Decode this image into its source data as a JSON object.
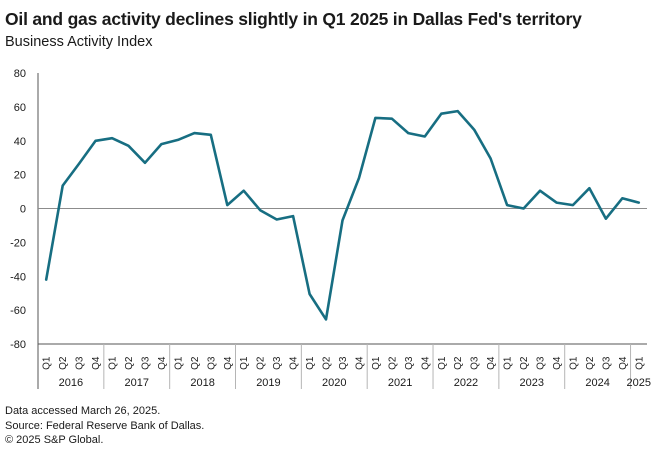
{
  "header": {
    "title": "Oil and gas activity declines slightly in Q1 2025 in Dallas Fed's territory",
    "subtitle": "Business Activity Index"
  },
  "footer": {
    "lines": [
      "Data accessed March 26, 2025.",
      "Source: Federal Reserve Bank of Dallas.",
      "© 2025 S&P Global."
    ]
  },
  "colors": {
    "line": "#176e82",
    "zero_line": "#8c8c8c",
    "axis": "#555555",
    "separator": "#b5b5b5"
  },
  "chart_data": {
    "type": "line",
    "ylim": [
      -80,
      80
    ],
    "yticks": [
      80,
      60,
      40,
      20,
      0,
      -20,
      -40,
      -60,
      -80
    ],
    "x": [
      "Q1 2016",
      "Q2 2016",
      "Q3 2016",
      "Q4 2016",
      "Q1 2017",
      "Q2 2017",
      "Q3 2017",
      "Q4 2017",
      "Q1 2018",
      "Q2 2018",
      "Q3 2018",
      "Q4 2018",
      "Q1 2019",
      "Q2 2019",
      "Q3 2019",
      "Q4 2019",
      "Q1 2020",
      "Q2 2020",
      "Q3 2020",
      "Q4 2020",
      "Q1 2021",
      "Q2 2021",
      "Q3 2021",
      "Q4 2021",
      "Q1 2022",
      "Q2 2022",
      "Q3 2022",
      "Q4 2022",
      "Q1 2023",
      "Q2 2023",
      "Q3 2023",
      "Q4 2023",
      "Q1 2024",
      "Q2 2024",
      "Q3 2024",
      "Q4 2024",
      "Q1 2025"
    ],
    "quarter_labels": [
      "Q1",
      "Q2",
      "Q3",
      "Q4",
      "Q1",
      "Q2",
      "Q3",
      "Q4",
      "Q1",
      "Q2",
      "Q3",
      "Q4",
      "Q1",
      "Q2",
      "Q3",
      "Q4",
      "Q1",
      "Q2",
      "Q3",
      "Q4",
      "Q1",
      "Q2",
      "Q3",
      "Q4",
      "Q1",
      "Q2",
      "Q3",
      "Q4",
      "Q1",
      "Q2",
      "Q3",
      "Q4",
      "Q1",
      "Q2",
      "Q3",
      "Q4",
      "Q1"
    ],
    "years": [
      {
        "label": "2016",
        "quarters": 4
      },
      {
        "label": "2017",
        "quarters": 4
      },
      {
        "label": "2018",
        "quarters": 4
      },
      {
        "label": "2019",
        "quarters": 4
      },
      {
        "label": "2020",
        "quarters": 4
      },
      {
        "label": "2021",
        "quarters": 4
      },
      {
        "label": "2022",
        "quarters": 4
      },
      {
        "label": "2023",
        "quarters": 4
      },
      {
        "label": "2024",
        "quarters": 4
      },
      {
        "label": "2025",
        "quarters": 1
      }
    ],
    "series": [
      {
        "values": [
          -42,
          13.5,
          26.5,
          40,
          41.5,
          37,
          27,
          38,
          40.5,
          44.5,
          43.5,
          2,
          10.5,
          -1,
          -6.5,
          -4.5,
          -50.5,
          -65.5,
          -7,
          18,
          53.5,
          53,
          44.5,
          42.5,
          56,
          57.5,
          46.5,
          29.5,
          2,
          0,
          10.5,
          3.5,
          2,
          12,
          -6,
          6,
          3.5
        ]
      }
    ],
    "grid": false,
    "legend": "none"
  }
}
